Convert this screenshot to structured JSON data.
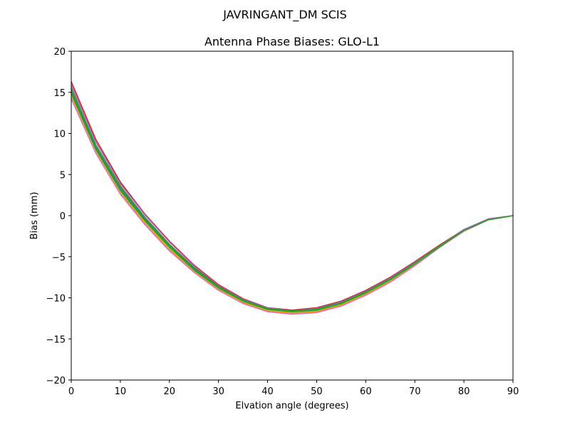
{
  "chart_data": {
    "type": "line",
    "suptitle": "JAVRINGANT_DM   SCIS",
    "title": "Antenna Phase Biases: GLO-L1",
    "xlabel": "Elvation angle (degrees)",
    "ylabel": "Bias (mm)",
    "xlim": [
      0,
      90
    ],
    "ylim": [
      -20,
      20
    ],
    "xticks": [
      0,
      10,
      20,
      30,
      40,
      50,
      60,
      70,
      80,
      90
    ],
    "yticks": [
      -20,
      -15,
      -10,
      -5,
      0,
      5,
      10,
      15,
      20
    ],
    "xtick_labels": [
      "0",
      "10",
      "20",
      "30",
      "40",
      "50",
      "60",
      "70",
      "80",
      "90"
    ],
    "ytick_labels": [
      "−20",
      "−15",
      "−10",
      "−5",
      "0",
      "5",
      "10",
      "15",
      "20"
    ],
    "grid": false,
    "x": [
      0,
      5,
      10,
      15,
      20,
      25,
      30,
      35,
      40,
      45,
      50,
      55,
      60,
      65,
      70,
      75,
      80,
      85,
      90
    ],
    "series": [
      {
        "color": "#d62728",
        "values": [
          16.3,
          9.3,
          4.1,
          0.2,
          -3.1,
          -6.0,
          -8.4,
          -10.1,
          -11.2,
          -11.5,
          -11.2,
          -10.4,
          -9.1,
          -7.5,
          -5.6,
          -3.6,
          -1.7,
          -0.4,
          0.0
        ]
      },
      {
        "color": "#9467bd",
        "values": [
          15.9,
          9.0,
          3.9,
          0.1,
          -3.2,
          -6.1,
          -8.5,
          -10.2,
          -11.2,
          -11.6,
          -11.3,
          -10.5,
          -9.2,
          -7.6,
          -5.7,
          -3.7,
          -1.7,
          -0.4,
          0.0
        ]
      },
      {
        "color": "#8c564b",
        "values": [
          15.5,
          8.6,
          3.6,
          -0.2,
          -3.5,
          -6.3,
          -8.6,
          -10.3,
          -11.3,
          -11.6,
          -11.4,
          -10.6,
          -9.3,
          -7.7,
          -5.8,
          -3.7,
          -1.8,
          -0.5,
          0.0
        ]
      },
      {
        "color": "#7f7f7f",
        "values": [
          15.2,
          8.4,
          3.4,
          -0.4,
          -3.6,
          -6.4,
          -8.7,
          -10.4,
          -11.4,
          -11.7,
          -11.5,
          -10.7,
          -9.4,
          -7.8,
          -5.8,
          -3.8,
          -1.8,
          -0.5,
          0.0
        ]
      },
      {
        "color": "#1f77b4",
        "values": [
          15.0,
          8.2,
          3.2,
          -0.5,
          -3.8,
          -6.5,
          -8.8,
          -10.4,
          -11.4,
          -11.7,
          -11.5,
          -10.7,
          -9.4,
          -7.8,
          -5.9,
          -3.8,
          -1.8,
          -0.5,
          0.0
        ]
      },
      {
        "color": "#17becf",
        "values": [
          14.8,
          8.0,
          3.0,
          -0.7,
          -3.9,
          -6.6,
          -8.9,
          -10.5,
          -11.5,
          -11.8,
          -11.6,
          -10.8,
          -9.5,
          -7.9,
          -5.9,
          -3.8,
          -1.9,
          -0.5,
          0.0
        ]
      },
      {
        "color": "#ff7f0e",
        "values": [
          14.5,
          7.8,
          2.8,
          -0.9,
          -4.1,
          -6.8,
          -9.0,
          -10.6,
          -11.6,
          -11.9,
          -11.7,
          -10.9,
          -9.6,
          -8.0,
          -6.0,
          -3.9,
          -1.9,
          -0.5,
          0.0
        ]
      },
      {
        "color": "#2ca02c",
        "values": [
          15.4,
          8.5,
          3.5,
          -0.3,
          -3.6,
          -6.4,
          -8.7,
          -10.3,
          -11.3,
          -11.6,
          -11.4,
          -10.6,
          -9.3,
          -7.7,
          -5.8,
          -3.7,
          -1.8,
          -0.5,
          0.0
        ]
      },
      {
        "color": "#bcbd22",
        "values": [
          14.6,
          7.9,
          2.9,
          -0.8,
          -4.0,
          -6.7,
          -8.9,
          -10.5,
          -11.5,
          -11.8,
          -11.6,
          -10.8,
          -9.5,
          -7.9,
          -5.9,
          -3.8,
          -1.9,
          -0.5,
          0.0
        ]
      },
      {
        "color": "#e377c2",
        "values": [
          14.2,
          7.6,
          2.6,
          -1.1,
          -4.3,
          -6.9,
          -9.1,
          -10.7,
          -11.7,
          -12.0,
          -11.8,
          -11.0,
          -9.7,
          -8.1,
          -6.1,
          -3.9,
          -1.9,
          -0.5,
          0.0
        ]
      },
      {
        "color": "#2ca02c",
        "values": [
          14.9,
          8.1,
          3.1,
          -0.6,
          -3.8,
          -6.6,
          -8.8,
          -10.4,
          -11.4,
          -11.7,
          -11.5,
          -10.7,
          -9.4,
          -7.8,
          -5.9,
          -3.8,
          -1.8,
          -0.5,
          0.0
        ]
      }
    ]
  }
}
